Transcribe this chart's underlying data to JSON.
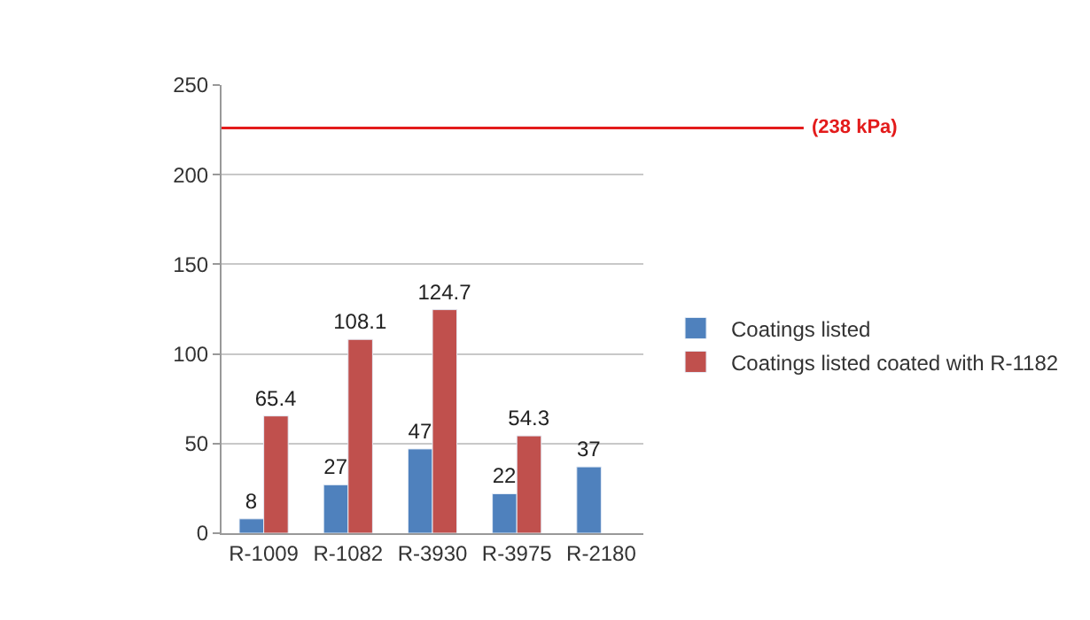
{
  "chart_data": {
    "type": "bar",
    "categories": [
      "R-1009",
      "R-1082",
      "R-3930",
      "R-3975",
      "R-2180"
    ],
    "series": [
      {
        "name": "Coatings listed",
        "color": "#4f81bd",
        "values": [
          8,
          27,
          47,
          22,
          37
        ]
      },
      {
        "name": "Coatings listed coated with R-1182",
        "color": "#c0504d",
        "values": [
          65.4,
          108.1,
          124.7,
          54.3,
          null
        ]
      }
    ],
    "ylim": [
      0,
      250
    ],
    "yticks": [
      0,
      50,
      100,
      150,
      200,
      250
    ],
    "grid": "y",
    "legend": "right",
    "data_labels": true,
    "ref_lines": [
      {
        "axis": "y",
        "value": 226,
        "label": "(238 kPa)",
        "color": "#e31b1b"
      }
    ]
  }
}
